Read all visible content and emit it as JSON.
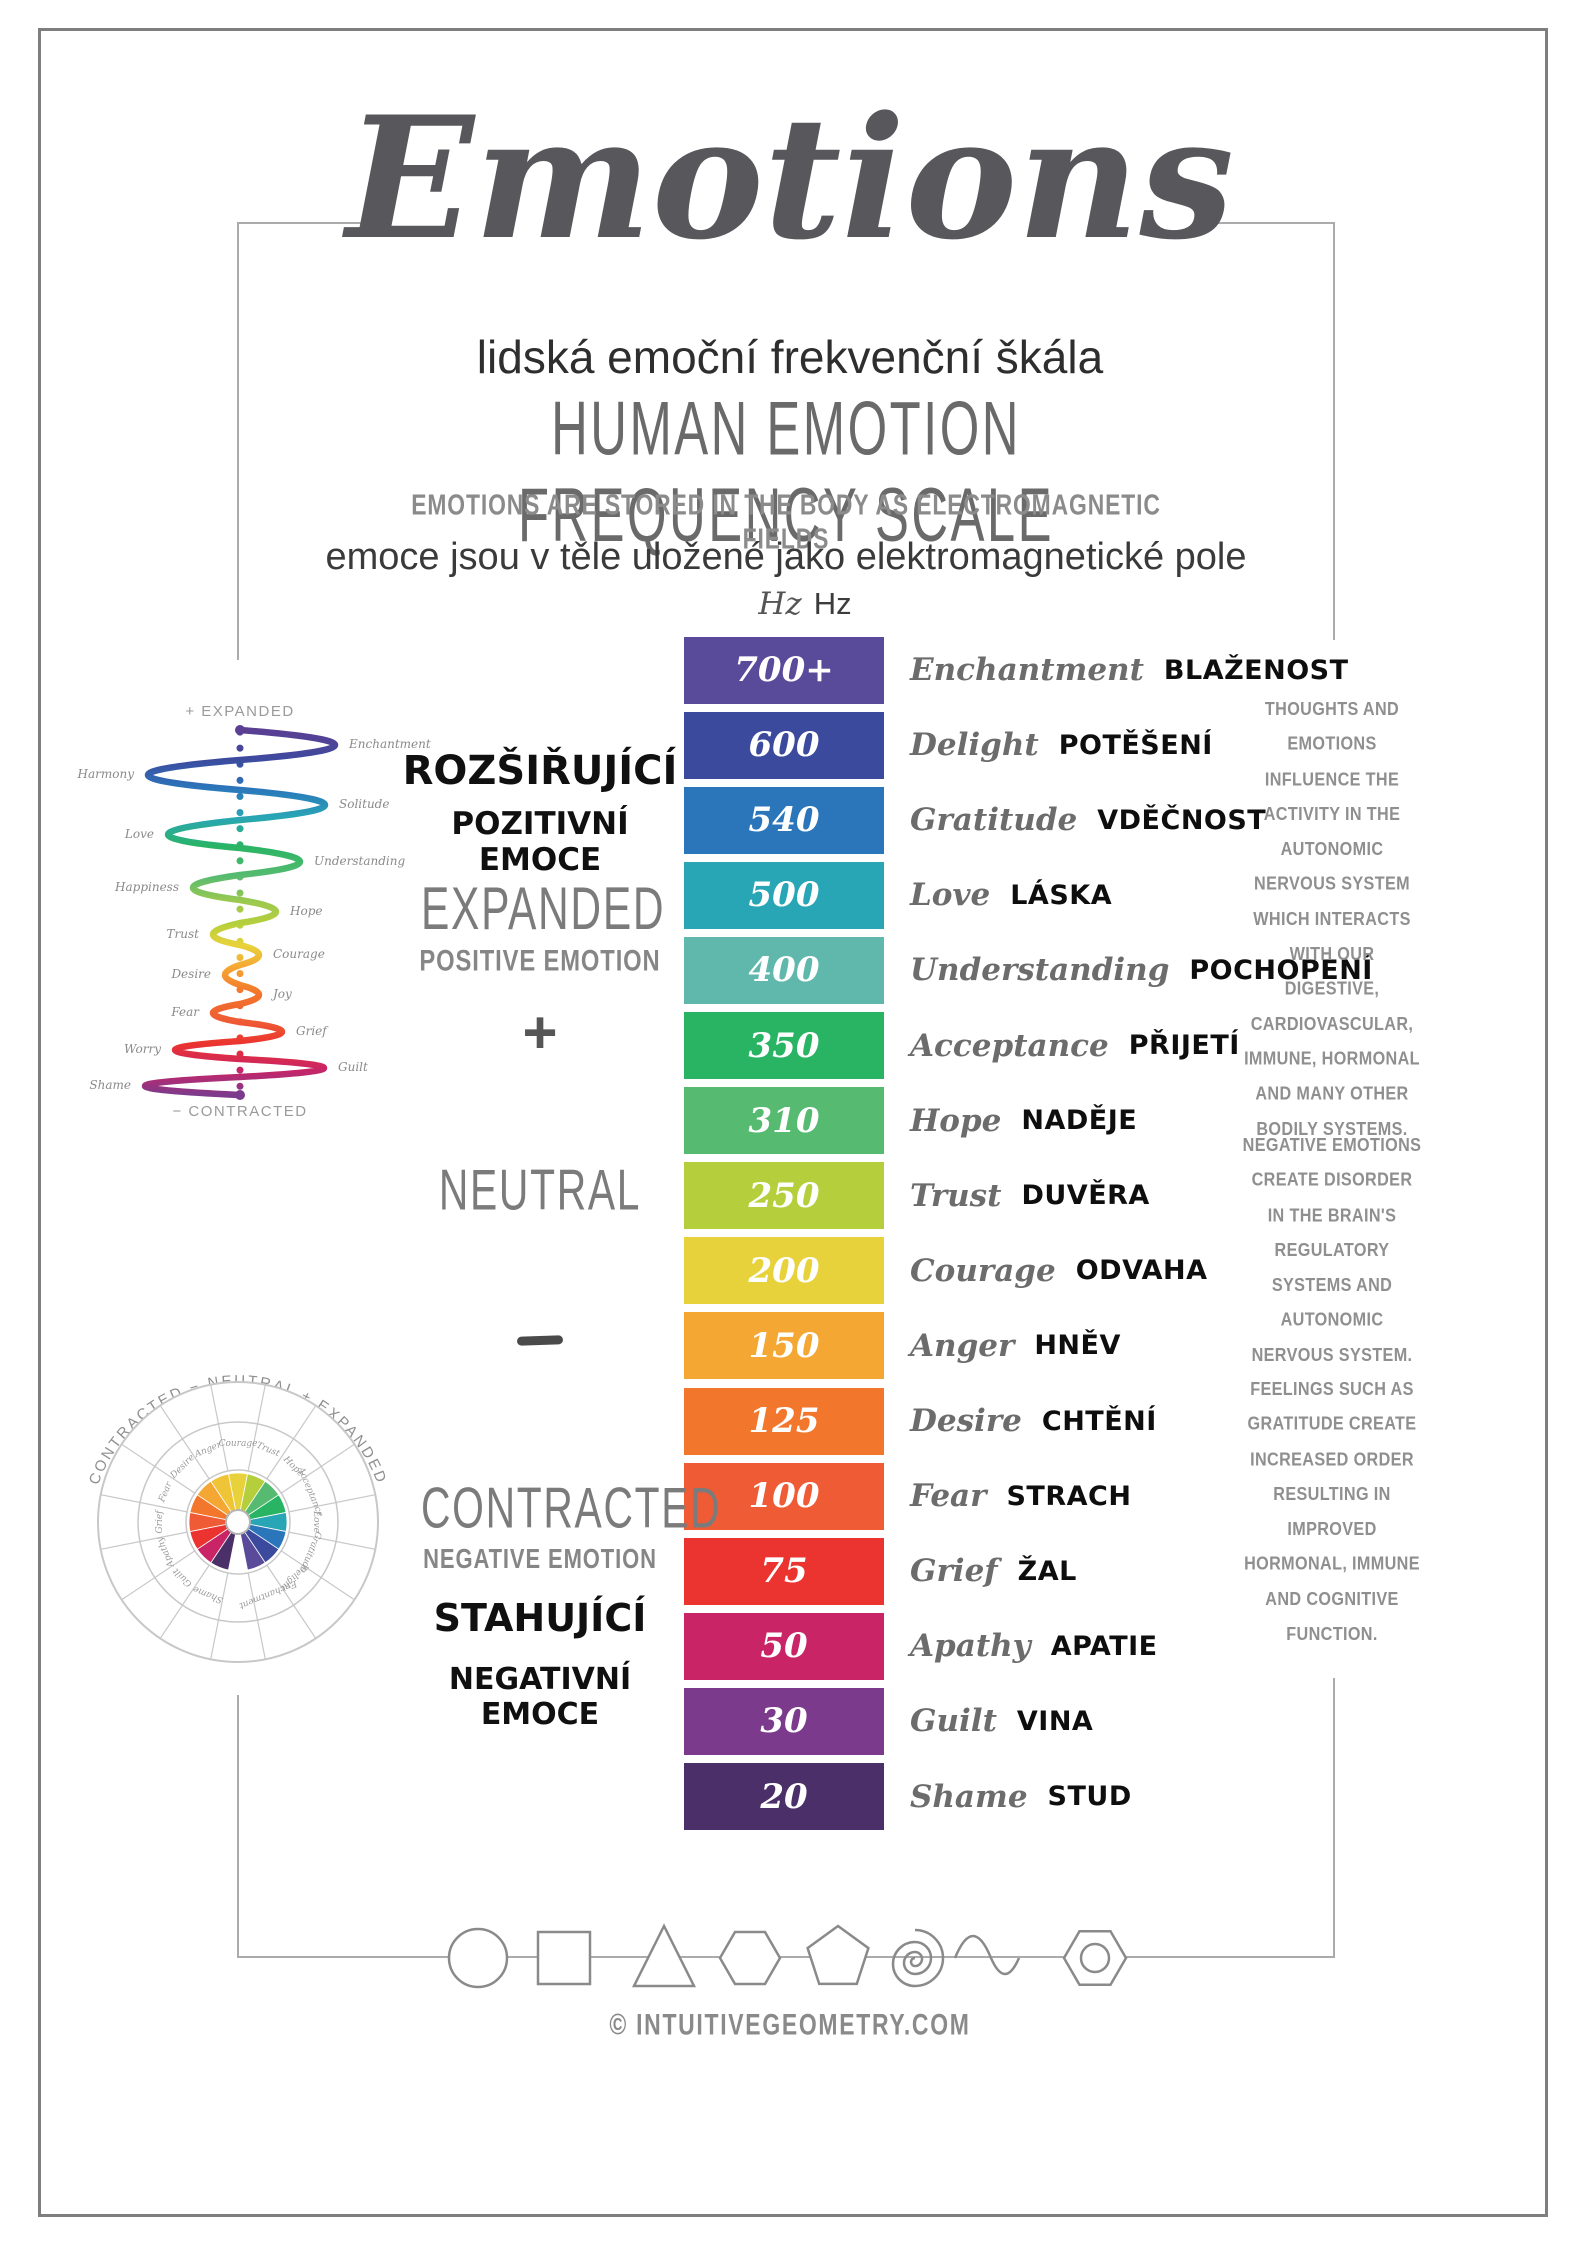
{
  "poster": {
    "title_script": "Emotions",
    "subtitle_cs": "lidská emoční frekvenční škála",
    "title_en": "HUMAN EMOTION FREQUENCY SCALE",
    "tagline_en": "EMOTIONS ARE STORED IN THE BODY AS ELECTROMAGNETIC FIELDS",
    "tagline_cs": "emoce jsou v těle uložené jako elektromagnetické pole",
    "hz_script": "Hz",
    "hz_plain": "Hz"
  },
  "scale": {
    "rows": [
      {
        "hz": "700+",
        "emotion_en": "Enchantment",
        "emotion_cs": "BLAŽENOST",
        "color": "#5a4a9a"
      },
      {
        "hz": "600",
        "emotion_en": "Delight",
        "emotion_cs": "POTĚŠENÍ",
        "color": "#3c4a9e"
      },
      {
        "hz": "540",
        "emotion_en": "Gratitude",
        "emotion_cs": "VDĚČNOST",
        "color": "#2b76bb"
      },
      {
        "hz": "500",
        "emotion_en": "Love",
        "emotion_cs": "LÁSKA",
        "color": "#29a6b5"
      },
      {
        "hz": "400",
        "emotion_en": "Understanding",
        "emotion_cs": "POCHOPENÍ",
        "color": "#5fb8ab"
      },
      {
        "hz": "350",
        "emotion_en": "Acceptance",
        "emotion_cs": "PŘIJETÍ",
        "color": "#29b464"
      },
      {
        "hz": "310",
        "emotion_en": "Hope",
        "emotion_cs": "NADĚJE",
        "color": "#56bb70"
      },
      {
        "hz": "250",
        "emotion_en": "Trust",
        "emotion_cs": "DUVĚRA",
        "color": "#b5cf3c"
      },
      {
        "hz": "200",
        "emotion_en": "Courage",
        "emotion_cs": "ODVAHA",
        "color": "#e8d23c"
      },
      {
        "hz": "150",
        "emotion_en": "Anger",
        "emotion_cs": "HNĚV",
        "color": "#f5a733"
      },
      {
        "hz": "125",
        "emotion_en": "Desire",
        "emotion_cs": "CHTĚNÍ",
        "color": "#f2762b"
      },
      {
        "hz": "100",
        "emotion_en": "Fear",
        "emotion_cs": "STRACH",
        "color": "#ee5b35"
      },
      {
        "hz": "75",
        "emotion_en": "Grief",
        "emotion_cs": "ŽAL",
        "color": "#eb332f"
      },
      {
        "hz": "50",
        "emotion_en": "Apathy",
        "emotion_cs": "APATIE",
        "color": "#c92566"
      },
      {
        "hz": "30",
        "emotion_en": "Guilt",
        "emotion_cs": "VINA",
        "color": "#7c3a8c"
      },
      {
        "hz": "20",
        "emotion_en": "Shame",
        "emotion_cs": "STUD",
        "color": "#4a2f69"
      }
    ]
  },
  "left_labels": {
    "expanded_cs_1": "ROZŠIŘUJÍCÍ",
    "expanded_cs_2": "POZITIVNÍ EMOCE",
    "expanded_en": "EXPANDED",
    "expanded_en_sub": "POSITIVE EMOTION",
    "plus": "+",
    "neutral": "NEUTRAL",
    "contracted_en": "CONTRACTED",
    "contracted_en_sub": "NEGATIVE EMOTION",
    "contracted_cs_1": "STAHUJÍCÍ",
    "contracted_cs_2": "NEGATIVNÍ EMOCE"
  },
  "spiral": {
    "top_label": "+ EXPANDED",
    "bottom_label": "− CONTRACTED",
    "labels": [
      "Enchantment",
      "Harmony",
      "Solitude",
      "Love",
      "Understanding",
      "Happiness",
      "Hope",
      "Trust",
      "Courage",
      "Desire",
      "Joy",
      "Fear",
      "Grief",
      "Worry",
      "Guilt",
      "Shame"
    ]
  },
  "wheel": {
    "arc_text": "CONTRACTED  −  NEUTRAL  +  EXPANDED",
    "segment_colors": [
      "#e8d23c",
      "#b5cf3c",
      "#56bb70",
      "#29b464",
      "#29a6b5",
      "#2b76bb",
      "#3c4a9e",
      "#5a4a9a",
      null,
      "#4a2f69",
      "#c92566",
      "#eb332f",
      "#ee5b35",
      "#f2762b",
      "#f5a733",
      "#f0c437"
    ],
    "ring_labels": [
      "Courage",
      "Trust",
      "Hope",
      "Acceptance",
      "Love",
      "Gratitude",
      "Delight",
      "Enchantment",
      "",
      "Shame",
      "Guilt",
      "Apathy",
      "Grief",
      "Fear",
      "Desire",
      "Anger"
    ]
  },
  "right_panel": {
    "paragraphs": [
      "THOUGHTS AND EMOTIONS INFLUENCE THE ACTIVITY IN THE AUTONOMIC NERVOUS SYSTEM WHICH INTERACTS WITH OUR DIGESTIVE, CARDIOVASCULAR, IMMUNE, HORMONAL AND MANY OTHER BODILY SYSTEMS.",
      "NEGATIVE EMOTIONS CREATE DISORDER IN THE BRAIN'S REGULATORY SYSTEMS AND AUTONOMIC NERVOUS SYSTEM.",
      "FEELINGS SUCH AS GRATITUDE CREATE INCREASED ORDER RESULTING IN IMPROVED HORMONAL, IMMUNE AND COGNITIVE FUNCTION."
    ]
  },
  "footer": {
    "shapes": [
      "circle",
      "square",
      "triangle",
      "hexagon",
      "pentagon",
      "spiral",
      "wave",
      "hex-nut"
    ],
    "copyright": "© INTUITIVEGEOMETRY.COM"
  },
  "chart_data": {
    "type": "table",
    "title": "Human Emotion Frequency Scale",
    "ylabel": "Hz",
    "categories": [
      "Enchantment",
      "Delight",
      "Gratitude",
      "Love",
      "Understanding",
      "Acceptance",
      "Hope",
      "Trust",
      "Courage",
      "Anger",
      "Desire",
      "Fear",
      "Grief",
      "Apathy",
      "Guilt",
      "Shame"
    ],
    "values": [
      700,
      600,
      540,
      500,
      400,
      350,
      310,
      250,
      200,
      150,
      125,
      100,
      75,
      50,
      30,
      20
    ],
    "legend_position": "none",
    "grid": false
  }
}
